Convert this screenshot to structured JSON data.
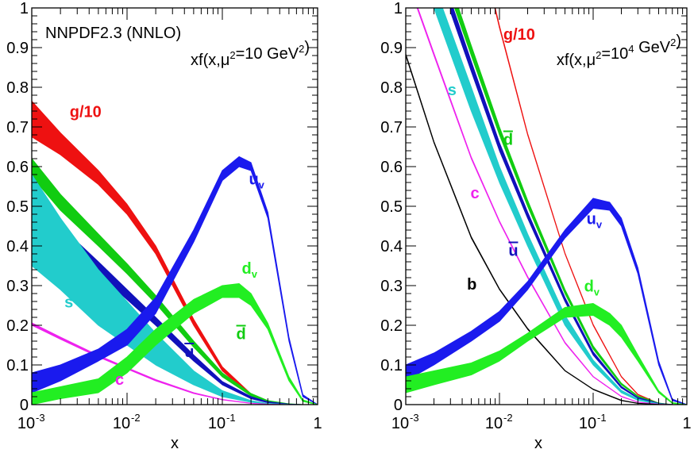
{
  "chart_data": [
    {
      "type": "area",
      "panel": "left",
      "title": "NNPDF2.3 (NNLO)",
      "annotation": "xf(x,μ²=10 GeV²)",
      "xlabel": "x",
      "ylabel": "",
      "xscale": "log",
      "xlim": [
        0.001,
        1
      ],
      "ylim": [
        0,
        1
      ],
      "yticks": [
        "0",
        "0.1",
        "0.2",
        "0.3",
        "0.4",
        "0.5",
        "0.6",
        "0.7",
        "0.8",
        "0.9",
        "1"
      ],
      "xticks": [
        {
          "value": 0.001,
          "base": "10",
          "exp": "-3"
        },
        {
          "value": 0.01,
          "base": "10",
          "exp": "-2"
        },
        {
          "value": 0.1,
          "base": "10",
          "exp": "-1"
        },
        {
          "value": 1,
          "base": "1",
          "exp": ""
        }
      ],
      "series": [
        {
          "name": "g/10",
          "name_main": "g/10",
          "name_sub": "",
          "name_bar": false,
          "color": "#ee1111",
          "label_x": 0.0025,
          "label_y": 0.725,
          "x": [
            0.001,
            0.002,
            0.005,
            0.01,
            0.02,
            0.05,
            0.1,
            0.2,
            0.3,
            0.5,
            0.7,
            1
          ],
          "y_low": [
            0.675,
            0.63,
            0.555,
            0.48,
            0.38,
            0.2,
            0.085,
            0.022,
            0.007,
            0.0005,
            0,
            0
          ],
          "y_high": [
            0.765,
            0.685,
            0.59,
            0.505,
            0.4,
            0.215,
            0.095,
            0.027,
            0.009,
            0.001,
            0,
            0
          ]
        },
        {
          "name": "d̄",
          "name_main": "d",
          "name_sub": "",
          "name_bar": true,
          "color": "#11cc11",
          "label_x": 0.14,
          "label_y": 0.165,
          "x": [
            0.001,
            0.002,
            0.005,
            0.01,
            0.02,
            0.05,
            0.1,
            0.2,
            0.3,
            0.5,
            0.7,
            1
          ],
          "y_low": [
            0.575,
            0.49,
            0.4,
            0.33,
            0.255,
            0.145,
            0.07,
            0.022,
            0.007,
            0.001,
            0,
            0
          ],
          "y_high": [
            0.62,
            0.53,
            0.43,
            0.355,
            0.275,
            0.16,
            0.08,
            0.028,
            0.01,
            0.002,
            0,
            0
          ]
        },
        {
          "name": "ū",
          "name_main": "u",
          "name_sub": "",
          "name_bar": true,
          "color": "#1111bb",
          "label_x": 0.04,
          "label_y": 0.12,
          "x": [
            0.001,
            0.002,
            0.005,
            0.01,
            0.02,
            0.05,
            0.1,
            0.2,
            0.3,
            0.5,
            0.7,
            1
          ],
          "y_low": [
            0.5,
            0.42,
            0.33,
            0.265,
            0.2,
            0.11,
            0.05,
            0.015,
            0.005,
            0.0008,
            0,
            0
          ],
          "y_high": [
            0.53,
            0.45,
            0.36,
            0.29,
            0.22,
            0.125,
            0.058,
            0.02,
            0.007,
            0.0012,
            0,
            0
          ]
        },
        {
          "name": "s",
          "name_main": "s",
          "name_sub": "",
          "name_bar": false,
          "color": "#22cccc",
          "label_x": 0.0022,
          "label_y": 0.245,
          "x": [
            0.001,
            0.002,
            0.005,
            0.01,
            0.02,
            0.05,
            0.1,
            0.2,
            0.3,
            0.5,
            0.7,
            1
          ],
          "y_low": [
            0.35,
            0.29,
            0.2,
            0.15,
            0.1,
            0.05,
            0.02,
            0.006,
            0.002,
            0,
            0,
            0
          ],
          "y_high": [
            0.58,
            0.47,
            0.34,
            0.26,
            0.18,
            0.085,
            0.035,
            0.01,
            0.003,
            0.0005,
            0,
            0
          ]
        },
        {
          "name": "c",
          "name_main": "c",
          "name_sub": "",
          "name_bar": false,
          "color": "#ee22ee",
          "label_x": 0.0075,
          "label_y": 0.05,
          "x": [
            0.001,
            0.002,
            0.005,
            0.01,
            0.02,
            0.05,
            0.1,
            0.2,
            0.3,
            0.5,
            0.7,
            1
          ],
          "y_low": [
            0.2,
            0.165,
            0.12,
            0.09,
            0.06,
            0.028,
            0.012,
            0.003,
            0.001,
            0,
            0,
            0
          ],
          "y_high": [
            0.206,
            0.17,
            0.124,
            0.093,
            0.063,
            0.03,
            0.013,
            0.0035,
            0.0012,
            0,
            0,
            0
          ]
        },
        {
          "name": "u_v",
          "name_main": "u",
          "name_sub": "v",
          "name_bar": false,
          "color": "#1a1aee",
          "label_x": 0.19,
          "label_y": 0.555,
          "x": [
            0.001,
            0.002,
            0.005,
            0.01,
            0.02,
            0.05,
            0.1,
            0.15,
            0.2,
            0.3,
            0.5,
            0.7,
            1
          ],
          "y_low": [
            0.03,
            0.06,
            0.11,
            0.15,
            0.23,
            0.41,
            0.565,
            0.6,
            0.59,
            0.47,
            0.16,
            0.02,
            0
          ],
          "y_high": [
            0.08,
            0.1,
            0.14,
            0.19,
            0.27,
            0.44,
            0.59,
            0.625,
            0.61,
            0.485,
            0.17,
            0.025,
            0
          ]
        },
        {
          "name": "d_v",
          "name_main": "d",
          "name_sub": "v",
          "name_bar": false,
          "color": "#22ee22",
          "label_x": 0.16,
          "label_y": 0.33,
          "x": [
            0.001,
            0.002,
            0.005,
            0.01,
            0.02,
            0.05,
            0.1,
            0.15,
            0.2,
            0.3,
            0.5,
            0.7,
            1
          ],
          "y_low": [
            0.0,
            0.015,
            0.03,
            0.08,
            0.15,
            0.23,
            0.27,
            0.27,
            0.25,
            0.19,
            0.06,
            0.008,
            0
          ],
          "y_high": [
            0.03,
            0.045,
            0.065,
            0.12,
            0.19,
            0.265,
            0.3,
            0.305,
            0.28,
            0.205,
            0.07,
            0.012,
            0
          ]
        }
      ]
    },
    {
      "type": "area",
      "panel": "right",
      "title": "",
      "annotation": "xf(x,μ²=10⁴ GeV²)",
      "xlabel": "x",
      "ylabel": "",
      "xscale": "log",
      "xlim": [
        0.001,
        1
      ],
      "ylim": [
        0,
        1
      ],
      "yticks": [
        "0",
        "0.1",
        "0.2",
        "0.3",
        "0.4",
        "0.5",
        "0.6",
        "0.7",
        "0.8",
        "0.9",
        "1"
      ],
      "xticks": [
        {
          "value": 0.001,
          "base": "10",
          "exp": "-3"
        },
        {
          "value": 0.01,
          "base": "10",
          "exp": "-2"
        },
        {
          "value": 0.1,
          "base": "10",
          "exp": "-1"
        },
        {
          "value": 1,
          "base": "1",
          "exp": ""
        }
      ],
      "series": [
        {
          "name": "g/10",
          "name_main": "g/10",
          "name_sub": "",
          "name_bar": false,
          "color": "#ee1111",
          "label_x": 0.011,
          "label_y": 0.92,
          "x": [
            0.0025,
            0.005,
            0.01,
            0.02,
            0.05,
            0.1,
            0.2,
            0.3,
            0.5,
            0.7,
            1
          ],
          "y_low": [
            1.6,
            1.25,
            0.95,
            0.68,
            0.38,
            0.2,
            0.07,
            0.025,
            0.003,
            0,
            0
          ],
          "y_high": [
            1.61,
            1.255,
            0.955,
            0.683,
            0.382,
            0.202,
            0.071,
            0.026,
            0.0035,
            0,
            0
          ]
        },
        {
          "name": "d̄",
          "name_main": "d",
          "name_sub": "",
          "name_bar": true,
          "color": "#11cc11",
          "label_x": 0.011,
          "label_y": 0.655,
          "x": [
            0.003,
            0.005,
            0.01,
            0.02,
            0.05,
            0.1,
            0.2,
            0.3,
            0.5,
            0.7,
            1
          ],
          "y_low": [
            1.03,
            0.88,
            0.68,
            0.5,
            0.28,
            0.14,
            0.05,
            0.02,
            0.003,
            0,
            0
          ],
          "y_high": [
            1.06,
            0.905,
            0.7,
            0.515,
            0.29,
            0.148,
            0.054,
            0.022,
            0.004,
            0,
            0
          ]
        },
        {
          "name": "ū",
          "name_main": "u",
          "name_sub": "",
          "name_bar": true,
          "color": "#1111bb",
          "label_x": 0.0125,
          "label_y": 0.375,
          "x": [
            0.003,
            0.005,
            0.01,
            0.02,
            0.05,
            0.1,
            0.2,
            0.3,
            0.5,
            0.7,
            1
          ],
          "y_low": [
            0.99,
            0.84,
            0.64,
            0.47,
            0.26,
            0.125,
            0.042,
            0.016,
            0.002,
            0,
            0
          ],
          "y_high": [
            1.02,
            0.865,
            0.66,
            0.485,
            0.27,
            0.133,
            0.046,
            0.018,
            0.003,
            0,
            0
          ]
        },
        {
          "name": "s",
          "name_main": "s",
          "name_sub": "",
          "name_bar": false,
          "color": "#22cccc",
          "label_x": 0.0028,
          "label_y": 0.78,
          "x": [
            0.002,
            0.005,
            0.01,
            0.02,
            0.05,
            0.1,
            0.2,
            0.3,
            0.5,
            0.7,
            1
          ],
          "y_low": [
            1.0,
            0.74,
            0.56,
            0.4,
            0.2,
            0.1,
            0.03,
            0.011,
            0.001,
            0,
            0
          ],
          "y_high": [
            1.06,
            0.8,
            0.6,
            0.43,
            0.225,
            0.112,
            0.036,
            0.014,
            0.002,
            0,
            0
          ]
        },
        {
          "name": "c",
          "name_main": "c",
          "name_sub": "",
          "name_bar": false,
          "color": "#ee22ee",
          "label_x": 0.0049,
          "label_y": 0.52,
          "x": [
            0.001,
            0.002,
            0.005,
            0.01,
            0.02,
            0.05,
            0.1,
            0.2,
            0.3,
            0.5,
            0.7,
            1
          ],
          "y_low": [
            1.08,
            0.88,
            0.62,
            0.46,
            0.32,
            0.155,
            0.07,
            0.02,
            0.006,
            0.001,
            0,
            0
          ],
          "y_high": [
            1.086,
            0.886,
            0.624,
            0.463,
            0.323,
            0.157,
            0.071,
            0.021,
            0.0065,
            0.0012,
            0,
            0
          ]
        },
        {
          "name": "b",
          "name_main": "b",
          "name_sub": "",
          "name_bar": false,
          "color": "#000000",
          "label_x": 0.0045,
          "label_y": 0.29,
          "x": [
            0.001,
            0.002,
            0.005,
            0.01,
            0.02,
            0.05,
            0.1,
            0.2,
            0.3,
            0.5,
            0.7,
            1
          ],
          "y_low": [
            0.88,
            0.66,
            0.42,
            0.29,
            0.19,
            0.085,
            0.038,
            0.01,
            0.003,
            0.0004,
            0,
            0
          ],
          "y_high": [
            0.884,
            0.663,
            0.423,
            0.292,
            0.192,
            0.086,
            0.039,
            0.011,
            0.0035,
            0.0005,
            0,
            0
          ]
        },
        {
          "name": "u_v",
          "name_main": "u",
          "name_sub": "v",
          "name_bar": false,
          "color": "#1a1aee",
          "label_x": 0.085,
          "label_y": 0.455,
          "x": [
            0.001,
            0.002,
            0.005,
            0.01,
            0.02,
            0.05,
            0.1,
            0.15,
            0.2,
            0.3,
            0.5,
            0.7,
            1
          ],
          "y_low": [
            0.06,
            0.1,
            0.16,
            0.21,
            0.29,
            0.42,
            0.495,
            0.49,
            0.45,
            0.33,
            0.1,
            0.01,
            0
          ],
          "y_high": [
            0.1,
            0.13,
            0.185,
            0.235,
            0.31,
            0.44,
            0.52,
            0.51,
            0.47,
            0.345,
            0.11,
            0.014,
            0
          ]
        },
        {
          "name": "d_v",
          "name_main": "d",
          "name_sub": "v",
          "name_bar": false,
          "color": "#22ee22",
          "label_x": 0.08,
          "label_y": 0.285,
          "x": [
            0.001,
            0.002,
            0.005,
            0.01,
            0.02,
            0.05,
            0.1,
            0.15,
            0.2,
            0.3,
            0.5,
            0.7,
            1
          ],
          "y_low": [
            0.03,
            0.05,
            0.075,
            0.11,
            0.16,
            0.22,
            0.225,
            0.2,
            0.17,
            0.11,
            0.03,
            0.003,
            0
          ],
          "y_high": [
            0.07,
            0.085,
            0.105,
            0.135,
            0.18,
            0.245,
            0.255,
            0.23,
            0.2,
            0.125,
            0.035,
            0.005,
            0
          ]
        }
      ]
    }
  ]
}
